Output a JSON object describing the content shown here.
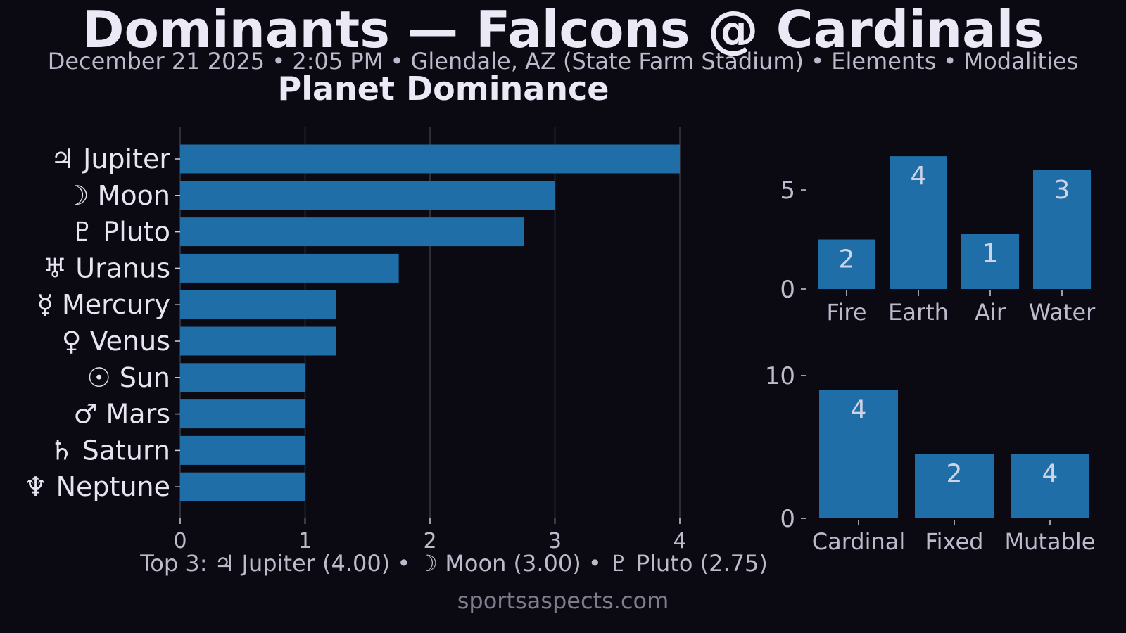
{
  "header": {
    "title": "Dominants — Falcons @ Cardinals",
    "subtitle": "December 21 2025 • 2:05 PM • Glendale, AZ (State Farm Stadium) • Elements • Modalities"
  },
  "footer": {
    "top3": "Top 3: ♃ Jupiter (4.00) • ☽ Moon (3.00) • ♇ Pluto (2.75)",
    "watermark": "sportsaspects.com"
  },
  "colors": {
    "background": "#0b0a12",
    "bar": "#1f6ea8",
    "text": "#e6e4f0",
    "muted_text": "#bdbacb",
    "grid": "#3a3948"
  },
  "chart_data": [
    {
      "id": "planet-dominance",
      "type": "bar",
      "orientation": "horizontal",
      "title": "Planet Dominance",
      "categories": [
        "♃ Jupiter",
        "☽ Moon",
        "♇ Pluto",
        "♅ Uranus",
        "☿ Mercury",
        "♀ Venus",
        "☉ Sun",
        "♂ Mars",
        "♄ Saturn",
        "♆ Neptune"
      ],
      "values": [
        4.0,
        3.0,
        2.75,
        1.75,
        1.25,
        1.25,
        1.0,
        1.0,
        1.0,
        1.0
      ],
      "xlim": [
        0,
        4
      ],
      "xticks": [
        "0",
        "1",
        "2",
        "3",
        "4"
      ],
      "grid": "vertical"
    },
    {
      "id": "elements",
      "type": "bar",
      "categories": [
        "Fire",
        "Earth",
        "Air",
        "Water"
      ],
      "values": [
        2.5,
        6.7,
        2.8,
        6.0
      ],
      "data_labels": [
        "2",
        "4",
        "1",
        "3"
      ],
      "ylim": [
        0,
        7.2
      ],
      "yticks": [
        {
          "value": 0,
          "label": "0"
        },
        {
          "value": 5,
          "label": "5"
        }
      ],
      "grid": false
    },
    {
      "id": "modalities",
      "type": "bar",
      "categories": [
        "Cardinal",
        "Fixed",
        "Mutable"
      ],
      "values": [
        9.0,
        4.5,
        4.5
      ],
      "data_labels": [
        "4",
        "2",
        "4"
      ],
      "ylim": [
        0,
        10
      ],
      "yticks": [
        {
          "value": 0,
          "label": "0"
        },
        {
          "value": 10,
          "label": "10"
        }
      ],
      "grid": false
    }
  ]
}
